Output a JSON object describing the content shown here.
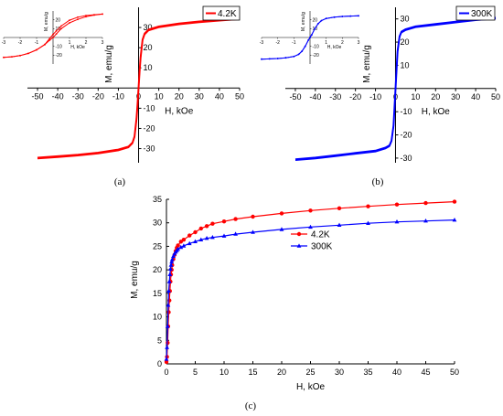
{
  "chart_data": [
    {
      "id": "a",
      "type": "line",
      "panel_label": "(a)",
      "legend_position": "top-right",
      "xlabel": "H, kOe",
      "ylabel": "M, emu/g",
      "xlim": [
        -55,
        50
      ],
      "ylim": [
        -37,
        40
      ],
      "xticks": [
        -50,
        -40,
        -30,
        -20,
        -10,
        0,
        10,
        20,
        30,
        40,
        50
      ],
      "yticks": [
        -30,
        -20,
        -10,
        10,
        20,
        30
      ],
      "series": [
        {
          "name": "4.2K",
          "color": "#ff0000",
          "x": [
            -50,
            -40,
            -30,
            -20,
            -10,
            -5,
            -3,
            -2,
            -1,
            -0.5,
            0,
            0.5,
            1,
            2,
            3,
            5,
            10,
            20,
            30,
            40,
            50
          ],
          "y": [
            -34.5,
            -33.8,
            -33.0,
            -32.0,
            -30.5,
            -29.0,
            -27.0,
            -24.0,
            -15.0,
            -8.0,
            0,
            8.0,
            15.0,
            24.0,
            27.0,
            29.0,
            30.5,
            32.0,
            33.0,
            33.8,
            34.5
          ]
        }
      ],
      "inset": {
        "xlabel": "H, kOe",
        "ylabel": "M, emu/g",
        "xlim": [
          -3,
          3
        ],
        "ylim": [
          -30,
          30
        ],
        "xticks": [
          -3,
          -2,
          -1,
          1,
          2,
          3
        ],
        "yticks": [
          -20,
          -10,
          10,
          20
        ],
        "branches": [
          {
            "name": "descending",
            "x": [
              3,
              2.5,
              2,
              1.5,
              1,
              0.5,
              0.2,
              0,
              -0.2,
              -0.5,
              -1,
              -1.5,
              -2,
              -2.5,
              -3
            ],
            "y": [
              26.5,
              25.8,
              24.8,
              23.0,
              19.5,
              13.0,
              7.5,
              3.5,
              -1.0,
              -8.0,
              -14.0,
              -18.0,
              -20.5,
              -21.8,
              -22.5
            ]
          },
          {
            "name": "ascending",
            "x": [
              -3,
              -2.5,
              -2,
              -1.5,
              -1,
              -0.5,
              -0.2,
              0,
              0.2,
              0.5,
              1,
              1.5,
              2,
              2.5,
              3
            ],
            "y": [
              -22.5,
              -21.8,
              -20.5,
              -18.0,
              -14.0,
              -8.0,
              -3.0,
              0.0,
              4.0,
              10.0,
              16.5,
              20.5,
              23.5,
              25.3,
              26.5
            ]
          }
        ]
      }
    },
    {
      "id": "b",
      "type": "line",
      "panel_label": "(b)",
      "legend_position": "top-right",
      "xlabel": "H, kOe",
      "ylabel": "M, emu/g",
      "xlim": [
        -55,
        50
      ],
      "ylim": [
        -32,
        35
      ],
      "xticks": [
        -50,
        -40,
        -30,
        -20,
        -10,
        0,
        10,
        20,
        30,
        40,
        50
      ],
      "yticks": [
        -30,
        -20,
        -10,
        10,
        20,
        30
      ],
      "series": [
        {
          "name": "300K",
          "color": "#0000ff",
          "x": [
            -50,
            -40,
            -30,
            -20,
            -10,
            -5,
            -3,
            -2,
            -1,
            -0.5,
            0,
            0.5,
            1,
            2,
            3,
            5,
            10,
            20,
            30,
            40,
            50
          ],
          "y": [
            -30.5,
            -29.8,
            -28.8,
            -27.8,
            -26.8,
            -25.5,
            -24.5,
            -22.5,
            -16.0,
            -8.0,
            0,
            8.0,
            16.0,
            22.5,
            24.5,
            25.5,
            26.8,
            27.8,
            28.8,
            29.8,
            30.5
          ]
        }
      ],
      "inset": {
        "xlabel": "H, kOe",
        "ylabel": "M, emu/g",
        "xlim": [
          -3,
          3
        ],
        "ylim": [
          -30,
          30
        ],
        "xticks": [
          -3,
          -2,
          -1,
          1,
          2,
          3
        ],
        "yticks": [
          -20,
          -10,
          10,
          20
        ],
        "branches": [
          {
            "name": "descending",
            "x": [
              3,
              2.5,
              2,
              1.5,
              1,
              0.7,
              0.5,
              0.3,
              0.1,
              0,
              -0.1,
              -0.3,
              -0.5,
              -0.7,
              -1,
              -1.5,
              -2,
              -2.5,
              -3
            ],
            "y": [
              24.5,
              24.2,
              23.8,
              23.0,
              21.5,
              19.0,
              15.5,
              10.0,
              3.0,
              0.0,
              -3.0,
              -10.0,
              -15.5,
              -19.0,
              -21.5,
              -23.0,
              -23.8,
              -24.2,
              -24.5
            ]
          },
          {
            "name": "ascending",
            "x": [
              -3,
              -2.5,
              -2,
              -1.5,
              -1,
              -0.7,
              -0.5,
              -0.3,
              -0.1,
              0,
              0.1,
              0.3,
              0.5,
              0.7,
              1,
              1.5,
              2,
              2.5,
              3
            ],
            "y": [
              -24.5,
              -24.2,
              -23.8,
              -23.0,
              -21.5,
              -19.0,
              -15.5,
              -10.0,
              -3.0,
              0.0,
              3.0,
              10.0,
              15.5,
              19.0,
              21.5,
              23.0,
              23.8,
              24.2,
              24.5
            ]
          }
        ]
      }
    },
    {
      "id": "c",
      "type": "line",
      "panel_label": "(c)",
      "legend_position": "right",
      "xlabel": "H, kOe",
      "ylabel": "M, emu/g",
      "xlim": [
        0,
        50
      ],
      "ylim": [
        0,
        35
      ],
      "xticks": [
        0,
        5,
        10,
        15,
        20,
        25,
        30,
        35,
        40,
        45,
        50
      ],
      "yticks": [
        0,
        5,
        10,
        15,
        20,
        25,
        30,
        35
      ],
      "series": [
        {
          "name": "4.2K",
          "color": "#ff0000",
          "marker": "circle",
          "x": [
            0,
            0.1,
            0.2,
            0.3,
            0.4,
            0.5,
            0.6,
            0.7,
            0.8,
            0.9,
            1.0,
            1.2,
            1.4,
            1.6,
            1.8,
            2.0,
            2.5,
            3,
            4,
            5,
            6,
            7,
            8,
            10,
            12,
            15,
            20,
            25,
            30,
            35,
            40,
            45,
            50
          ],
          "y": [
            0.4,
            1.5,
            4.5,
            8.0,
            11.0,
            13.5,
            15.5,
            17.5,
            19.0,
            20.0,
            21.0,
            22.3,
            23.2,
            24.0,
            24.7,
            25.2,
            26.0,
            26.4,
            27.3,
            28.0,
            28.8,
            29.3,
            29.8,
            30.3,
            30.8,
            31.3,
            32.0,
            32.6,
            33.1,
            33.5,
            33.9,
            34.2,
            34.5
          ]
        },
        {
          "name": "300K",
          "color": "#0000ff",
          "marker": "triangle",
          "x": [
            0,
            0.1,
            0.2,
            0.3,
            0.4,
            0.5,
            0.6,
            0.7,
            0.8,
            0.9,
            1.0,
            1.2,
            1.4,
            1.6,
            1.8,
            2.0,
            2.5,
            3,
            4,
            5,
            6,
            7,
            8,
            10,
            12,
            15,
            20,
            25,
            30,
            35,
            40,
            45,
            50
          ],
          "y": [
            1.0,
            3.5,
            8.0,
            12.5,
            15.5,
            17.5,
            19.0,
            20.2,
            21.0,
            21.7,
            22.2,
            22.9,
            23.4,
            23.8,
            24.1,
            24.4,
            24.8,
            25.1,
            25.6,
            26.0,
            26.4,
            26.7,
            26.9,
            27.2,
            27.6,
            28.0,
            28.6,
            29.1,
            29.5,
            29.9,
            30.2,
            30.4,
            30.6
          ]
        }
      ]
    }
  ]
}
